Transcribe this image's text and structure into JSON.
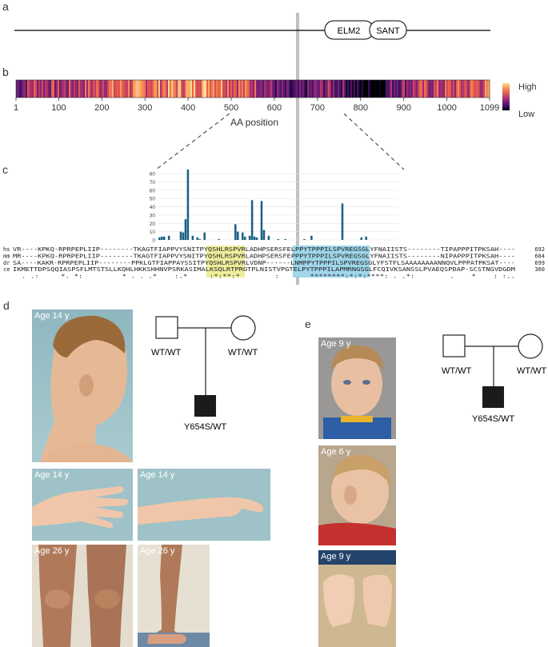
{
  "panels": {
    "a": {
      "label": "a",
      "domains": [
        "ELM2",
        "SANT"
      ]
    },
    "b": {
      "label": "b",
      "ticks": [
        "1",
        "100",
        "200",
        "300",
        "400",
        "500",
        "600",
        "700",
        "800",
        "900",
        "1000",
        "1099"
      ],
      "xlabel": "AA position",
      "legend_high": "High",
      "legend_low": "Low"
    },
    "c": {
      "label": "c",
      "yticks": [
        "0",
        "10",
        "20",
        "30",
        "40",
        "50",
        "60",
        "70",
        "80"
      ],
      "alignment": [
        {
          "species": "hs",
          "seq": "VR----KPKQ-RPRPEPLIIP--------TKAGTFIAPPVYSNITPYQSHLRSPVRLADHPSERSFELPPYTPPPILSPVREGSGLYFNAIISTS--------TIPAPPPITPKSAH----",
          "end": "692"
        },
        {
          "species": "mm",
          "seq": "MR----KPKQ-RPRPEPLIIP--------TKAGTFIAPPVYSNITPYQSHLRSPVRLADHPSERSFEPPPYTPPPILSPVREGSGLYFNAIISTS--------NIPAPPPITPKSAH----",
          "end": "684"
        },
        {
          "species": "dr",
          "seq": "SA----KAKR-RPRPEPLIIP--------PPKLGTFIAPPAYSSITPYQSHLRSPVRLVDNP------LNMPPYTPPPILSPVREGSGLYFSTFLSAAAAAAAANNQVLPPPATPKSAT----",
          "end": "699"
        },
        {
          "species": "ce",
          "seq": "IKMETTDPSQQIASPSFLMTSTSLLKQHLHKKSHHNVPSRKASIMALKSQLRTPRGTPLNISTVPGTELPYTPPPILAPMRNGSGLFCQIVKSANSSLPVAEQSPDAP-SCSTNGVDGDM",
          "end": "360"
        }
      ],
      "consensus": "  . .:     *. *:         * . . .*    :.*     :*:**:*        :       ********:*:*:****: . .*:        .    *    : :.."
    },
    "d": {
      "label": "d",
      "ages": [
        "Age 14 y",
        "Age 14 y",
        "Age 14 y",
        "Age 26 y",
        "Age 26 y"
      ],
      "pedigree": {
        "father": "WT/WT",
        "mother": "WT/WT",
        "child": "Y654S/WT"
      }
    },
    "e": {
      "label": "e",
      "ages": [
        "Age 9 y",
        "Age 6 y",
        "Age 9 y"
      ],
      "pedigree": {
        "father": "WT/WT",
        "mother": "WT/WT",
        "child": "Y654S/WT"
      }
    }
  },
  "chart_data": [
    {
      "type": "heatmap",
      "title": "",
      "xlabel": "AA position",
      "xlim": [
        1,
        1099
      ],
      "legend": [
        "High",
        "Low"
      ],
      "stops": [
        [
          1,
          0.35
        ],
        [
          40,
          0.6
        ],
        [
          100,
          0.5
        ],
        [
          160,
          0.6
        ],
        [
          220,
          0.7
        ],
        [
          300,
          0.75
        ],
        [
          380,
          0.8
        ],
        [
          450,
          0.9
        ],
        [
          500,
          0.75
        ],
        [
          560,
          0.6
        ],
        [
          600,
          0.35
        ],
        [
          640,
          0.15
        ],
        [
          680,
          0.3
        ],
        [
          720,
          0.45
        ],
        [
          760,
          0.35
        ],
        [
          800,
          0.02
        ],
        [
          850,
          0.05
        ],
        [
          870,
          0.4
        ],
        [
          930,
          0.55
        ],
        [
          1000,
          0.6
        ],
        [
          1099,
          0.7
        ]
      ]
    },
    {
      "type": "bar",
      "title": "",
      "ylim": [
        0,
        85
      ],
      "yticks": [
        0,
        10,
        20,
        30,
        40,
        50,
        60,
        70,
        80
      ],
      "values": [
        3,
        4,
        4,
        0,
        5,
        0,
        0,
        0,
        0,
        10,
        9,
        25,
        85,
        0,
        5,
        0,
        3,
        1,
        0,
        9,
        0,
        0,
        0,
        0,
        0,
        1,
        0,
        0,
        0,
        0,
        0,
        0,
        19,
        10,
        0,
        9,
        4,
        0,
        5,
        48,
        4,
        3,
        0,
        47,
        12,
        0,
        5,
        0,
        0,
        0,
        1,
        0,
        0,
        1,
        0,
        0,
        0,
        0,
        0,
        0,
        0,
        1,
        0,
        0,
        5,
        0,
        0,
        0,
        0,
        0,
        0,
        0,
        0,
        0,
        0,
        0,
        0,
        44,
        0,
        0,
        0,
        0,
        0,
        0,
        0,
        3,
        0,
        4,
        0,
        0,
        0,
        0,
        0,
        0,
        0,
        0,
        0,
        0,
        0,
        0,
        0
      ]
    }
  ],
  "colors": {
    "bar": "#1a5f86",
    "yellow_highlight": "#f0ee9c",
    "blue_highlight": "#9fd6ea",
    "vertical_marker": "#b5b5b5",
    "photo_bg": "#9ec2c7"
  }
}
